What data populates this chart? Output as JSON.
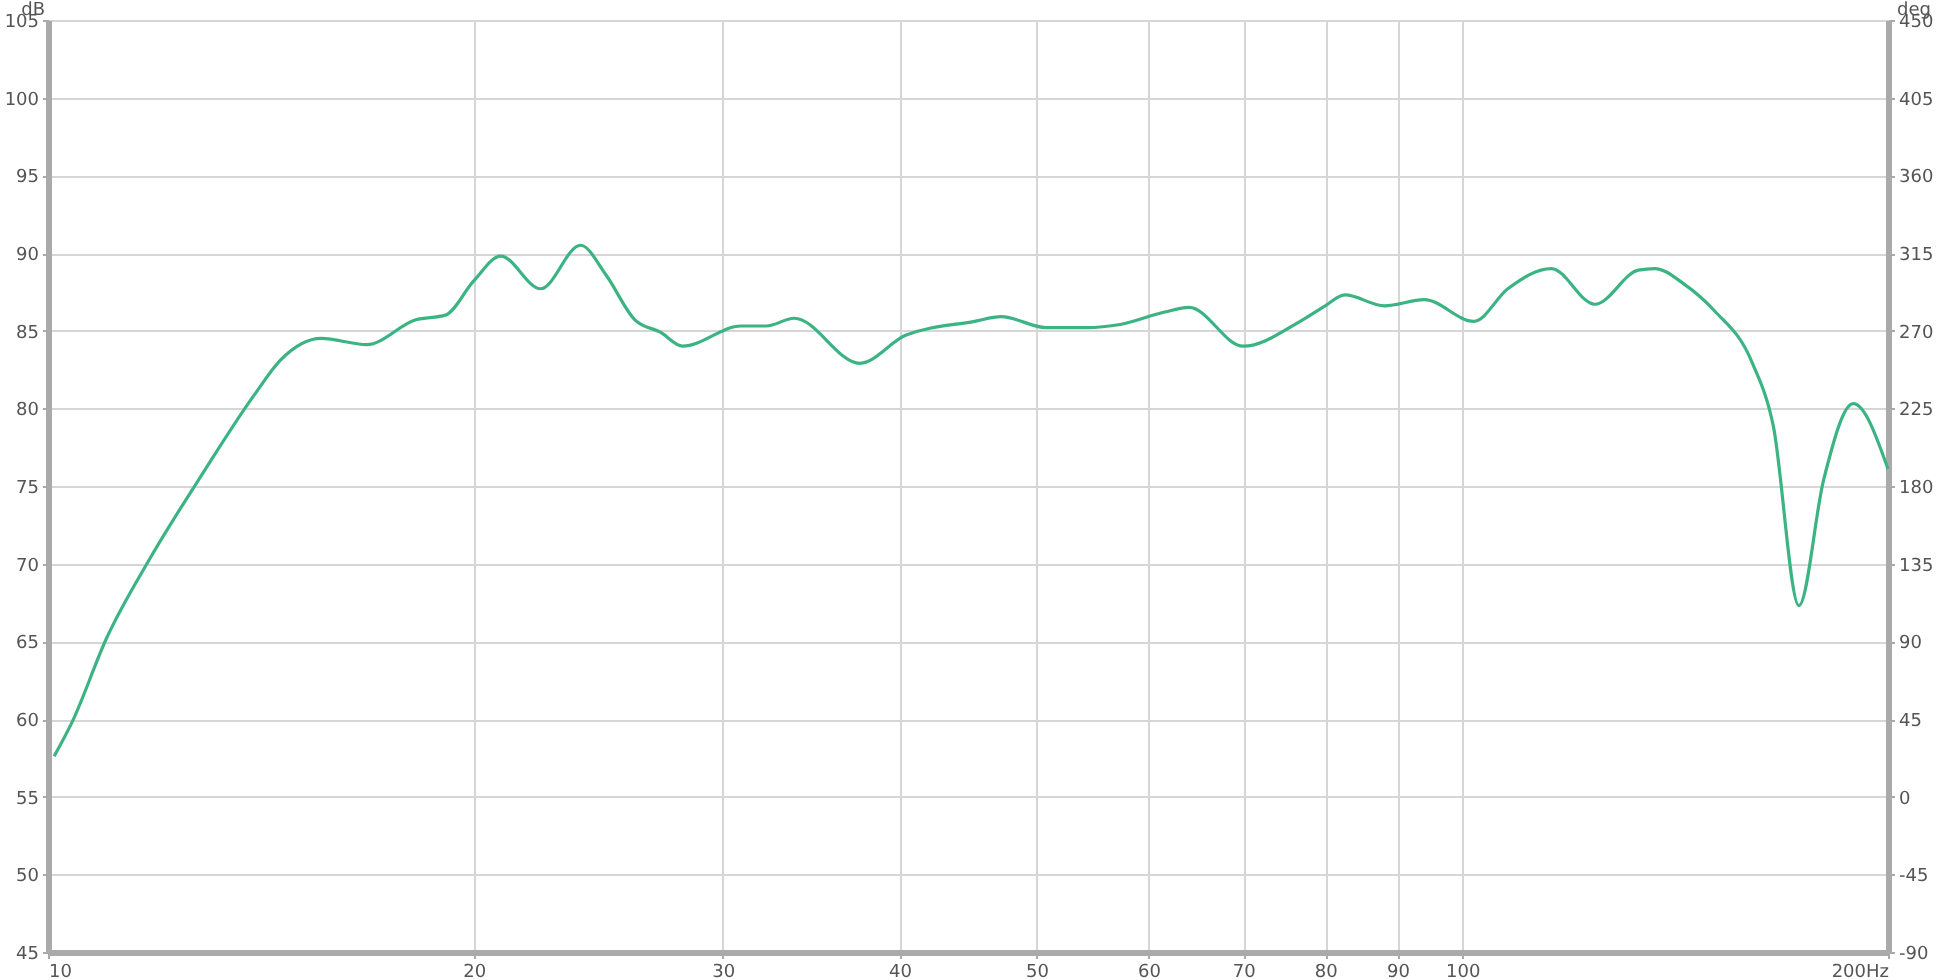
{
  "chart_data": {
    "type": "line",
    "ylabel": "dB",
    "y2label": "deg",
    "log": "x",
    "grid": true,
    "x": [
      10.1,
      10.4,
      11.0,
      11.8,
      12.8,
      14.0,
      14.6,
      15.6,
      16.8,
      18.2,
      19.1,
      20.0,
      20.9,
      22.3,
      23.8,
      24.8,
      26.0,
      27.1,
      28.1,
      30.9,
      32.2,
      33.7,
      37.5,
      40.4,
      45.2,
      47.2,
      50.8,
      54.2,
      57.3,
      61.6,
      64.1,
      70.0,
      76.8,
      80.0,
      82.6,
      88.1,
      94.0,
      101.9,
      107.7,
      115.6,
      124.1,
      133.2,
      136.8,
      143.5,
      150.7,
      160.4,
      165.9,
      173.0,
      180.1,
      189.0,
      200.0
    ],
    "series": [
      {
        "color": "#3cb383",
        "values": [
          57.6,
          59.8,
          65.2,
          70.3,
          75.5,
          80.9,
          83.1,
          84.5,
          84.1,
          85.7,
          86.0,
          88.2,
          89.8,
          87.7,
          90.5,
          88.6,
          85.7,
          84.9,
          84.0,
          85.3,
          85.3,
          85.8,
          82.9,
          84.7,
          85.6,
          85.9,
          85.2,
          85.2,
          85.4,
          86.2,
          86.5,
          84.0,
          85.6,
          86.6,
          87.3,
          86.6,
          87.0,
          85.6,
          87.7,
          89.0,
          86.7,
          88.9,
          89.0,
          88.0,
          86.3,
          82.9,
          78.9,
          67.3,
          75.4,
          80.3,
          76.1
        ]
      }
    ],
    "xlim": [
      10,
      200
    ],
    "xticks": [
      10,
      20,
      30,
      40,
      50,
      60,
      70,
      80,
      90,
      100,
      {
        "value": 200,
        "label": "200Hz"
      }
    ],
    "ylim": [
      45,
      105
    ],
    "yticks": [
      45,
      50,
      55,
      60,
      65,
      70,
      75,
      80,
      85,
      90,
      95,
      100,
      105
    ],
    "y2lim": [
      -90,
      450
    ],
    "y2ticks": [
      -90,
      -45,
      0,
      45,
      90,
      135,
      180,
      225,
      270,
      315,
      360,
      405,
      450
    ]
  }
}
